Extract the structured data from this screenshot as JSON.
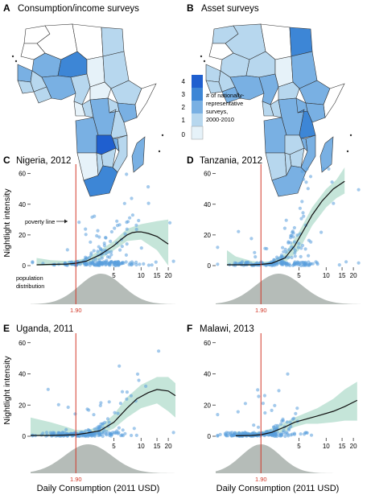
{
  "panels": [
    {
      "letter": "A",
      "title": "Consumption/income surveys"
    },
    {
      "letter": "B",
      "title": "Asset surveys"
    },
    {
      "letter": "C",
      "title": "Nigeria, 2012"
    },
    {
      "letter": "D",
      "title": "Tanzania, 2012"
    },
    {
      "letter": "E",
      "title": "Uganda, 2011"
    },
    {
      "letter": "F",
      "title": "Malawi, 2013"
    }
  ],
  "legend": {
    "levels": [
      "4",
      "3",
      "2",
      "1",
      "0"
    ],
    "colors": [
      "#1f5fcf",
      "#3d86d6",
      "#79b0e3",
      "#b7d7ee",
      "#e6f2f9",
      "#ffffff"
    ],
    "text": [
      "# of nationally-",
      "representative",
      "surveys,",
      "2000-2010"
    ]
  },
  "annotations": {
    "poverty_line": "poverty line",
    "population_distribution": [
      "population",
      "distribution"
    ]
  },
  "axes": {
    "ylabel": "Nightlight intensity",
    "xlabel": "Daily Consumption (2011 USD)",
    "poverty_tick": "1.90",
    "x_ticks": [
      "5",
      "10",
      "15",
      "20"
    ],
    "y_ticks": [
      "60",
      "40",
      "20",
      "0"
    ]
  },
  "colors": {
    "points": "#5a9fdc",
    "band": "#9fd3bf",
    "poverty": "#d23a2a",
    "density": "#b5bcb8"
  },
  "chart_data": [
    {
      "type": "scatter",
      "name": "Nigeria, 2012",
      "xscale": "log",
      "xlim": [
        0.6,
        24
      ],
      "ylim": [
        0,
        64
      ],
      "poverty_line": 1.9,
      "curve": {
        "x": [
          0.7,
          1.0,
          1.5,
          1.9,
          2.5,
          3.5,
          5,
          6,
          7,
          8,
          9,
          10,
          12,
          15,
          20
        ],
        "y": [
          0.5,
          0.8,
          1.0,
          1.5,
          3,
          7,
          13,
          17,
          20,
          21.5,
          22,
          22,
          21,
          19,
          14
        ]
      },
      "band": {
        "x": [
          0.7,
          1.0,
          1.5,
          1.9,
          2.5,
          3.5,
          5,
          7,
          10,
          15,
          20
        ],
        "upper": [
          5,
          3.5,
          3,
          3.5,
          5,
          10,
          16,
          24,
          27,
          29,
          30
        ],
        "lower": [
          0,
          0,
          0,
          0,
          1,
          4,
          10,
          16,
          17,
          10,
          0
        ]
      },
      "density": {
        "mode": 3.6,
        "sigma": 0.55
      }
    },
    {
      "type": "scatter",
      "name": "Tanzania, 2012",
      "xscale": "log",
      "xlim": [
        0.6,
        24
      ],
      "ylim": [
        0,
        64
      ],
      "poverty_line": 1.9,
      "curve": {
        "x": [
          0.8,
          1.0,
          1.5,
          1.9,
          2.5,
          3.5,
          4.5,
          5.5,
          7,
          9,
          12,
          16
        ],
        "y": [
          0.5,
          0.5,
          0.5,
          0.8,
          1.5,
          5,
          13,
          22,
          33,
          42,
          50,
          55
        ]
      },
      "band": {
        "x": [
          0.8,
          1.0,
          1.5,
          1.9,
          2.5,
          3.5,
          5,
          7,
          10,
          13,
          16
        ],
        "upper": [
          10,
          6,
          3,
          2.5,
          3,
          8,
          22,
          38,
          50,
          56,
          64
        ],
        "lower": [
          0,
          0,
          0,
          0,
          0,
          2,
          10,
          26,
          38,
          44,
          47
        ]
      },
      "density": {
        "mode": 3.0,
        "sigma": 0.6
      }
    },
    {
      "type": "scatter",
      "name": "Uganda, 2011",
      "xscale": "log",
      "xlim": [
        0.6,
        24
      ],
      "ylim": [
        0,
        64
      ],
      "poverty_line": 1.9,
      "curve": {
        "x": [
          0.6,
          1.0,
          1.5,
          1.9,
          2.5,
          3.5,
          5,
          7,
          9,
          12,
          15,
          20,
          24
        ],
        "y": [
          0.5,
          0.5,
          0.8,
          1,
          2,
          3.5,
          9,
          18,
          24,
          28,
          30,
          29,
          26
        ]
      },
      "band": {
        "x": [
          0.6,
          1.0,
          1.5,
          1.9,
          2.5,
          3.5,
          5,
          7,
          10,
          15,
          20,
          24
        ],
        "upper": [
          12,
          9,
          6,
          4,
          4,
          6,
          14,
          25,
          33,
          38,
          38,
          34
        ],
        "lower": [
          0,
          0,
          0,
          0,
          0,
          1,
          5,
          12,
          18,
          21,
          16,
          12
        ]
      },
      "density": {
        "mode": 2.6,
        "sigma": 0.6
      }
    },
    {
      "type": "scatter",
      "name": "Malawi, 2013",
      "xscale": "log",
      "xlim": [
        0.6,
        24
      ],
      "ylim": [
        0,
        64
      ],
      "poverty_line": 1.9,
      "curve": {
        "x": [
          1.0,
          1.5,
          1.9,
          2.5,
          3.5,
          4.5,
          6,
          8,
          12,
          16,
          22
        ],
        "y": [
          0.3,
          0.5,
          1,
          2.5,
          6,
          9,
          11,
          13,
          16,
          19,
          23
        ]
      },
      "band": {
        "x": [
          1.0,
          1.5,
          1.9,
          2.5,
          3.5,
          4.5,
          6,
          8,
          12,
          16,
          22
        ],
        "upper": [
          3,
          2.5,
          3,
          5,
          9,
          12,
          15,
          18,
          24,
          30,
          35
        ],
        "lower": [
          0,
          0,
          0,
          1,
          3,
          6,
          8,
          8,
          9,
          10,
          10
        ]
      },
      "density": {
        "mode": 1.9,
        "sigma": 0.5
      }
    }
  ]
}
